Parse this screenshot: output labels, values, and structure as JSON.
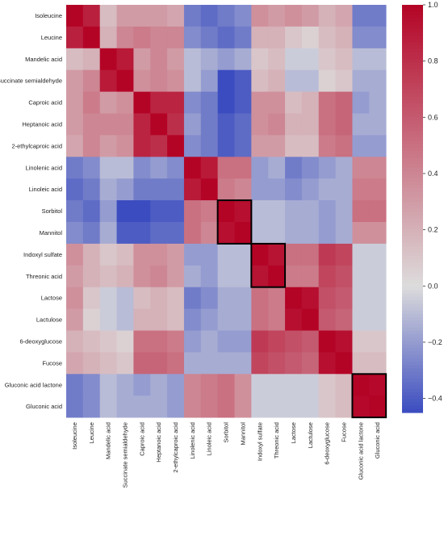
{
  "chart_data": {
    "type": "heatmap",
    "labels": [
      "Isoleucine",
      "Leucine",
      "Mandelic acid",
      "Succinate semialdehyde",
      "Caproic acid",
      "Heptanoic acid",
      "2-ethylcaproic acid",
      "Linolenic acid",
      "Linoleic acid",
      "Sorbitol",
      "Mannitol",
      "Indoxyl sulfate",
      "Threonic acid",
      "Lactose",
      "Lactulose",
      "6-deoxyglucose",
      "Fucose",
      "Gluconic acid lactone",
      "Gluconic acid"
    ],
    "matrix": [
      [
        1.0,
        0.87,
        0.15,
        0.3,
        0.3,
        0.3,
        0.25,
        -0.3,
        -0.35,
        -0.3,
        -0.25,
        0.35,
        0.3,
        0.35,
        0.3,
        0.2,
        0.25,
        -0.3,
        -0.3
      ],
      [
        0.87,
        1.0,
        0.2,
        0.4,
        0.45,
        0.4,
        0.4,
        -0.25,
        -0.3,
        -0.35,
        -0.3,
        0.2,
        0.2,
        0.1,
        0.05,
        0.15,
        0.2,
        -0.25,
        -0.25
      ],
      [
        0.15,
        0.2,
        1.0,
        0.9,
        0.3,
        0.4,
        0.3,
        -0.1,
        -0.15,
        -0.2,
        -0.15,
        0.1,
        0.15,
        -0.05,
        -0.05,
        0.1,
        0.15,
        -0.1,
        -0.1
      ],
      [
        0.3,
        0.4,
        0.9,
        1.0,
        0.35,
        0.4,
        0.35,
        -0.1,
        -0.2,
        -0.45,
        -0.4,
        0.15,
        0.2,
        -0.1,
        -0.1,
        0.05,
        0.1,
        -0.15,
        -0.15
      ],
      [
        0.3,
        0.45,
        0.3,
        0.35,
        1.0,
        0.85,
        0.85,
        -0.25,
        -0.3,
        -0.45,
        -0.4,
        0.35,
        0.35,
        0.15,
        0.2,
        0.5,
        0.55,
        -0.2,
        -0.15
      ],
      [
        0.3,
        0.4,
        0.4,
        0.4,
        0.85,
        1.0,
        0.8,
        -0.2,
        -0.3,
        -0.4,
        -0.35,
        0.35,
        0.4,
        0.2,
        0.2,
        0.5,
        0.55,
        -0.15,
        -0.15
      ],
      [
        0.25,
        0.4,
        0.3,
        0.35,
        0.85,
        0.8,
        1.0,
        -0.25,
        -0.3,
        -0.4,
        -0.35,
        0.3,
        0.3,
        0.15,
        0.15,
        0.45,
        0.5,
        -0.2,
        -0.2
      ],
      [
        -0.3,
        -0.25,
        -0.1,
        -0.1,
        -0.25,
        -0.2,
        -0.25,
        1.0,
        0.9,
        0.5,
        0.5,
        -0.2,
        -0.15,
        -0.3,
        -0.25,
        -0.2,
        -0.15,
        0.4,
        0.4
      ],
      [
        -0.35,
        -0.3,
        -0.15,
        -0.2,
        -0.3,
        -0.3,
        -0.3,
        0.9,
        1.0,
        0.45,
        0.4,
        -0.2,
        -0.2,
        -0.25,
        -0.2,
        -0.15,
        -0.15,
        0.45,
        0.45
      ],
      [
        -0.3,
        -0.35,
        -0.2,
        -0.45,
        -0.45,
        -0.4,
        -0.4,
        0.5,
        0.45,
        1.0,
        0.95,
        -0.1,
        -0.1,
        -0.15,
        -0.15,
        -0.2,
        -0.15,
        0.5,
        0.5
      ],
      [
        -0.25,
        -0.3,
        -0.15,
        -0.4,
        -0.4,
        -0.35,
        -0.35,
        0.5,
        0.4,
        0.95,
        1.0,
        -0.1,
        -0.1,
        -0.15,
        -0.15,
        -0.2,
        -0.15,
        0.35,
        0.35
      ],
      [
        0.35,
        0.2,
        0.1,
        0.15,
        0.35,
        0.35,
        0.3,
        -0.2,
        -0.2,
        -0.1,
        -0.1,
        1.0,
        0.93,
        0.5,
        0.5,
        0.75,
        0.7,
        -0.05,
        -0.05
      ],
      [
        0.3,
        0.2,
        0.15,
        0.2,
        0.35,
        0.4,
        0.3,
        -0.15,
        -0.2,
        -0.1,
        -0.1,
        0.93,
        1.0,
        0.45,
        0.45,
        0.7,
        0.65,
        -0.05,
        -0.05
      ],
      [
        0.35,
        0.1,
        -0.05,
        -0.1,
        0.15,
        0.2,
        0.15,
        -0.3,
        -0.25,
        -0.15,
        -0.15,
        0.5,
        0.45,
        1.0,
        0.95,
        0.65,
        0.6,
        -0.05,
        -0.05
      ],
      [
        0.3,
        0.05,
        -0.05,
        -0.1,
        0.2,
        0.2,
        0.15,
        -0.25,
        -0.2,
        -0.15,
        -0.15,
        0.5,
        0.45,
        0.95,
        1.0,
        0.6,
        0.55,
        -0.05,
        -0.05
      ],
      [
        0.2,
        0.15,
        0.1,
        0.05,
        0.5,
        0.5,
        0.45,
        -0.2,
        -0.15,
        -0.2,
        -0.2,
        0.75,
        0.7,
        0.65,
        0.6,
        1.0,
        0.95,
        0.1,
        0.1
      ],
      [
        0.25,
        0.2,
        0.15,
        0.1,
        0.55,
        0.55,
        0.5,
        -0.15,
        -0.15,
        -0.15,
        -0.15,
        0.7,
        0.65,
        0.6,
        0.55,
        0.95,
        1.0,
        0.15,
        0.15
      ],
      [
        -0.3,
        -0.25,
        -0.1,
        -0.15,
        -0.2,
        -0.15,
        -0.2,
        0.4,
        0.45,
        0.5,
        0.35,
        -0.05,
        -0.05,
        -0.05,
        -0.05,
        0.1,
        0.15,
        1.0,
        0.98
      ],
      [
        -0.3,
        -0.25,
        -0.1,
        -0.15,
        -0.15,
        -0.15,
        -0.2,
        0.4,
        0.45,
        0.5,
        0.35,
        -0.05,
        -0.05,
        -0.05,
        -0.05,
        0.1,
        0.15,
        0.98,
        1.0
      ]
    ],
    "highlight_blocks": [
      [
        9,
        10
      ],
      [
        11,
        12
      ],
      [
        17,
        18
      ]
    ],
    "colorbar": {
      "min": -0.45,
      "max": 1.0,
      "ticks": [
        "1.0",
        "0.8",
        "0.6",
        "0.4",
        "0.2",
        "0.0",
        "−0.2",
        "−0.4"
      ],
      "tick_values": [
        1.0,
        0.8,
        0.6,
        0.4,
        0.2,
        0.0,
        -0.2,
        -0.4
      ]
    },
    "colormap": "coolwarm",
    "colors": {
      "low": "#3b4cc0",
      "mid": "#dddcdc",
      "high": "#b40426",
      "outline": "#000000"
    }
  }
}
